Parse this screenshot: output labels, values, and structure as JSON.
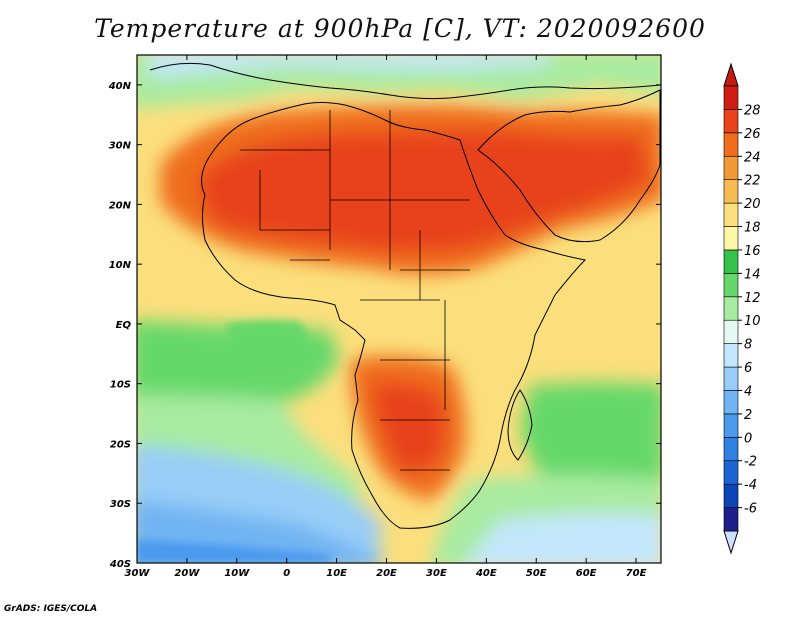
{
  "title": "Temperature at 900hPa [C], VT: 2020092600",
  "credit": "GrADS: IGES/COLA",
  "map": {
    "lon_range": [
      -30,
      75
    ],
    "lat_range": [
      -40,
      45
    ],
    "x_ticks": [
      {
        "value": -30,
        "label": "30W"
      },
      {
        "value": -20,
        "label": "20W"
      },
      {
        "value": -10,
        "label": "10W"
      },
      {
        "value": 0,
        "label": "0"
      },
      {
        "value": 10,
        "label": "10E"
      },
      {
        "value": 20,
        "label": "20E"
      },
      {
        "value": 30,
        "label": "30E"
      },
      {
        "value": 40,
        "label": "40E"
      },
      {
        "value": 50,
        "label": "50E"
      },
      {
        "value": 60,
        "label": "60E"
      },
      {
        "value": 70,
        "label": "70E"
      }
    ],
    "y_ticks": [
      {
        "value": 40,
        "label": "40N"
      },
      {
        "value": 30,
        "label": "30N"
      },
      {
        "value": 20,
        "label": "20N"
      },
      {
        "value": 10,
        "label": "10N"
      },
      {
        "value": 0,
        "label": "EQ"
      },
      {
        "value": -10,
        "label": "10S"
      },
      {
        "value": -20,
        "label": "20S"
      },
      {
        "value": -30,
        "label": "30S"
      },
      {
        "value": -40,
        "label": "40S"
      }
    ]
  },
  "colorbar": {
    "levels": [
      "-6",
      "-4",
      "-2",
      "0",
      "2",
      "4",
      "6",
      "8",
      "10",
      "12",
      "14",
      "16",
      "18",
      "20",
      "22",
      "24",
      "26",
      "28"
    ],
    "colors": [
      "#1c1f8c",
      "#0b46b8",
      "#1e65d3",
      "#2e80e3",
      "#4b9aee",
      "#70b4f3",
      "#98cdf7",
      "#c3e6fb",
      "#e3f8f3",
      "#a7eba0",
      "#66d86a",
      "#36c14a",
      "#fff6a6",
      "#fbdf7c",
      "#f7bb54",
      "#f29a35",
      "#ef6d1c",
      "#e8431a",
      "#d01d14"
    ],
    "under_color": "#cfe0ff",
    "over_color": "#c81c12"
  }
}
